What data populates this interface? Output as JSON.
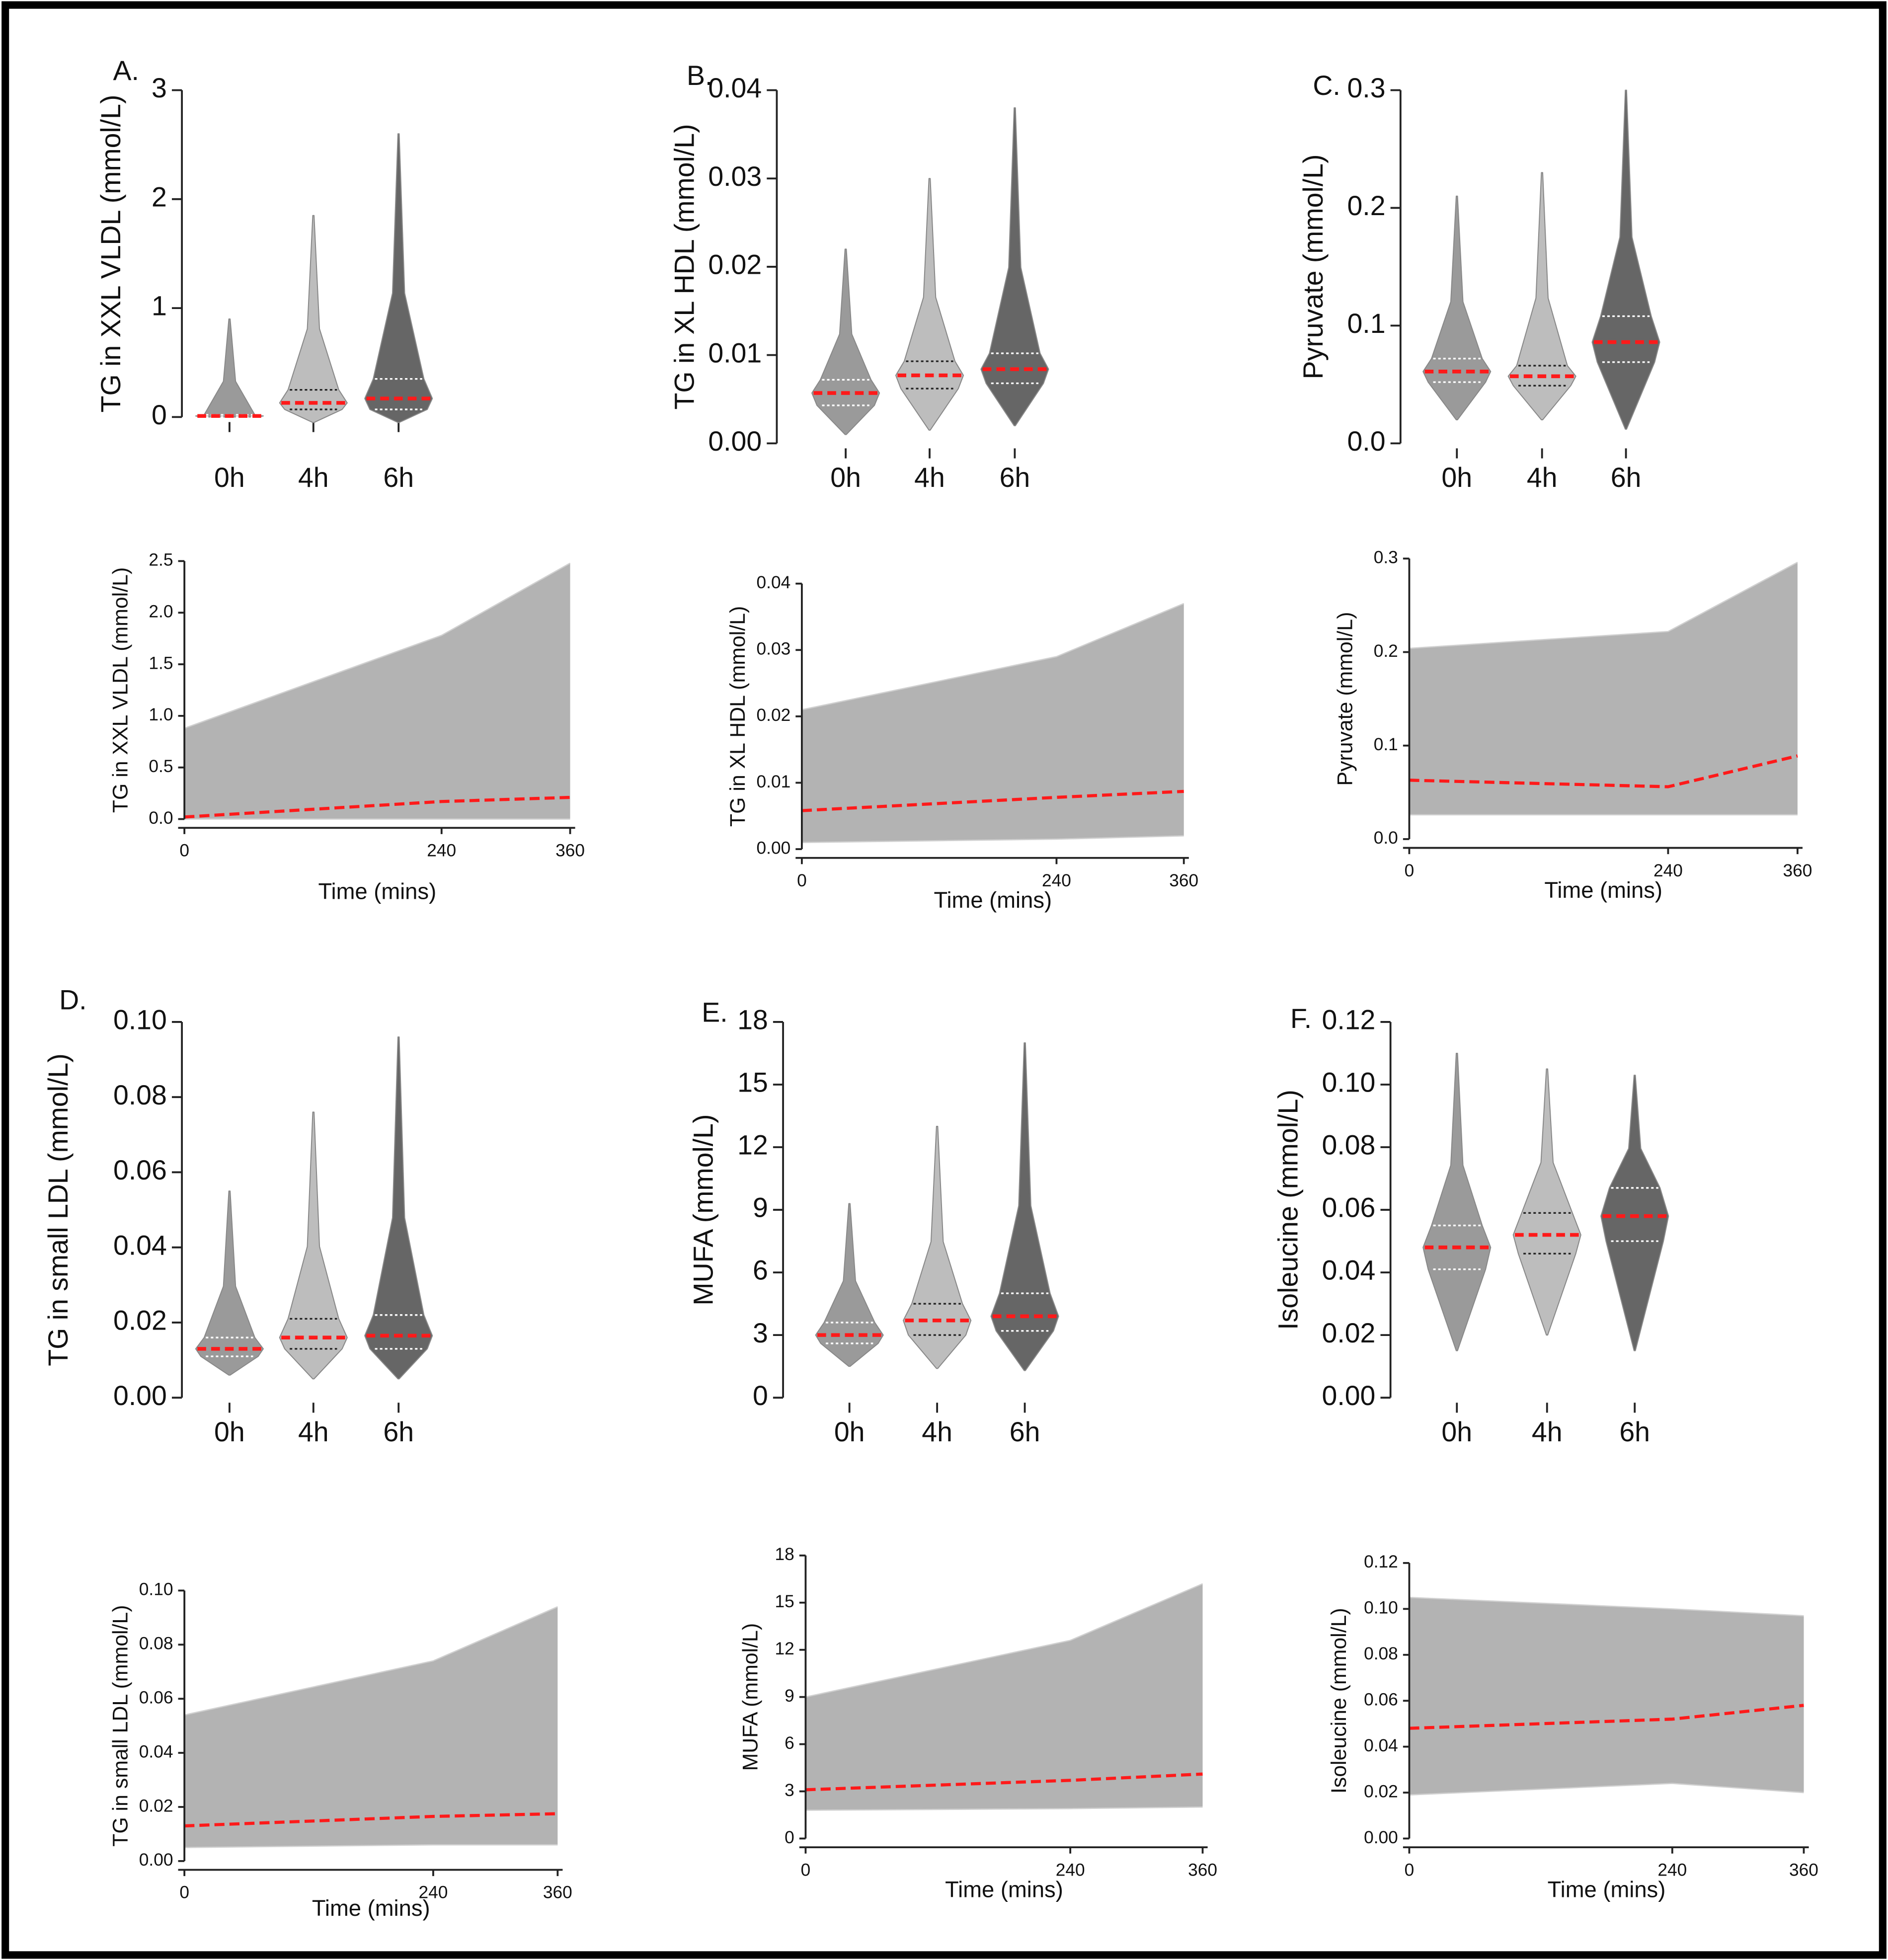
{
  "chart_data": [
    {
      "type": "violin",
      "label": "A.",
      "ylabel": "TG in XXL VLDL (mmol/L)",
      "categories": [
        "0h",
        "4h",
        "6h"
      ],
      "ylim": [
        0,
        3
      ],
      "yticks": [
        0,
        1,
        2,
        3
      ],
      "violins": [
        {
          "color": "#9a9a9a",
          "min": 0,
          "q1": 0,
          "median": 0.01,
          "q3": 0.02,
          "max": 0.9
        },
        {
          "color": "#bdbdbd",
          "min": -0.05,
          "q1": 0.07,
          "median": 0.13,
          "q3": 0.25,
          "max": 1.85
        },
        {
          "color": "#666666",
          "min": -0.05,
          "q1": 0.07,
          "median": 0.17,
          "q3": 0.35,
          "max": 2.6
        }
      ]
    },
    {
      "type": "violin",
      "label": "B.",
      "ylabel": "TG in XL HDL (mmol/L)",
      "categories": [
        "0h",
        "4h",
        "6h"
      ],
      "ylim": [
        0,
        0.04
      ],
      "yticks": [
        {
          "value": 0,
          "label": "0.00"
        },
        {
          "value": 0.01,
          "label": "0.01"
        },
        {
          "value": 0.02,
          "label": "0.02"
        },
        {
          "value": 0.03,
          "label": "0.03"
        },
        {
          "value": 0.04,
          "label": "0.04"
        }
      ],
      "violins": [
        {
          "color": "#9a9a9a",
          "min": 0.001,
          "q1": 0.0043,
          "median": 0.0057,
          "q3": 0.0072,
          "max": 0.022
        },
        {
          "color": "#bdbdbd",
          "min": 0.0015,
          "q1": 0.0062,
          "median": 0.0077,
          "q3": 0.0093,
          "max": 0.03
        },
        {
          "color": "#666666",
          "min": 0.002,
          "q1": 0.0068,
          "median": 0.0084,
          "q3": 0.0102,
          "max": 0.038
        }
      ]
    },
    {
      "type": "violin",
      "label": "C.",
      "ylabel": "Pyruvate (mmol/L)",
      "categories": [
        "0h",
        "4h",
        "6h"
      ],
      "ylim": [
        0,
        0.3
      ],
      "yticks": [
        {
          "value": 0,
          "label": "0.0"
        },
        0.1,
        0.2,
        0.3
      ],
      "violins": [
        {
          "color": "#9a9a9a",
          "min": 0.02,
          "q1": 0.052,
          "median": 0.061,
          "q3": 0.072,
          "max": 0.21
        },
        {
          "color": "#bdbdbd",
          "min": 0.02,
          "q1": 0.049,
          "median": 0.057,
          "q3": 0.066,
          "max": 0.23
        },
        {
          "color": "#666666",
          "min": 0.012,
          "q1": 0.069,
          "median": 0.086,
          "q3": 0.108,
          "max": 0.3
        }
      ]
    },
    {
      "type": "line",
      "ylabel": "TG in XXL VLDL (mmol/L)",
      "xlabel": "Time (mins)",
      "x": [
        0,
        240,
        360
      ],
      "xlim": [
        0,
        360
      ],
      "xticks": [
        0,
        240,
        360
      ],
      "ylim": [
        0,
        2.5
      ],
      "yticks": [
        {
          "value": 0,
          "label": "0.0"
        },
        0.5,
        {
          "value": 1,
          "label": "1.0"
        },
        1.5,
        {
          "value": 2,
          "label": "2.0"
        },
        2.5
      ],
      "series": [
        {
          "color": "#d0d0d0",
          "values": [
            0.88,
            1.78,
            2.48
          ]
        },
        {
          "color": "#d0d0d0",
          "values": [
            0,
            0,
            0
          ]
        },
        {
          "color": "#ff1a1a",
          "values": [
            0.02,
            0.17,
            0.21
          ]
        }
      ]
    },
    {
      "type": "line",
      "ylabel": "TG in XL HDL (mmol/L)",
      "xlabel": "Time (mins)",
      "x": [
        0,
        240,
        360
      ],
      "xlim": [
        0,
        360
      ],
      "xticks": [
        0,
        240,
        360
      ],
      "ylim": [
        0,
        0.04
      ],
      "yticks": [
        {
          "value": 0,
          "label": "0.00"
        },
        {
          "value": 0.01,
          "label": "0.01"
        },
        {
          "value": 0.02,
          "label": "0.02"
        },
        {
          "value": 0.03,
          "label": "0.03"
        },
        {
          "value": 0.04,
          "label": "0.04"
        }
      ],
      "series": [
        {
          "color": "#d0d0d0",
          "values": [
            0.021,
            0.029,
            0.037
          ]
        },
        {
          "color": "#d0d0d0",
          "values": [
            0.001,
            0.0015,
            0.002
          ]
        },
        {
          "color": "#ff1a1a",
          "values": [
            0.0058,
            0.0078,
            0.0087
          ]
        }
      ]
    },
    {
      "type": "line",
      "ylabel": "Pyruvate (mmol/L)",
      "xlabel": "Time (mins)",
      "x": [
        0,
        240,
        360
      ],
      "xlim": [
        0,
        360
      ],
      "xticks": [
        0,
        240,
        360
      ],
      "ylim": [
        0,
        0.3
      ],
      "yticks": [
        {
          "value": 0,
          "label": "0.0"
        },
        0.1,
        0.2,
        0.3
      ],
      "series": [
        {
          "color": "#d0d0d0",
          "values": [
            0.204,
            0.222,
            0.296
          ]
        },
        {
          "color": "#d0d0d0",
          "values": [
            0.026,
            0.026,
            0.026
          ]
        },
        {
          "color": "#ff1a1a",
          "values": [
            0.063,
            0.056,
            0.089
          ]
        }
      ]
    },
    {
      "type": "violin",
      "label": "D.",
      "ylabel": "TG in small LDL (mmol/L)",
      "categories": [
        "0h",
        "4h",
        "6h"
      ],
      "ylim": [
        0,
        0.1
      ],
      "yticks": [
        {
          "value": 0,
          "label": "0.00"
        },
        {
          "value": 0.02,
          "label": "0.02"
        },
        {
          "value": 0.04,
          "label": "0.04"
        },
        {
          "value": 0.06,
          "label": "0.06"
        },
        {
          "value": 0.08,
          "label": "0.08"
        },
        {
          "value": 0.1,
          "label": "0.10"
        }
      ],
      "violins": [
        {
          "color": "#9a9a9a",
          "min": 0.006,
          "q1": 0.011,
          "median": 0.013,
          "q3": 0.016,
          "max": 0.055
        },
        {
          "color": "#bdbdbd",
          "min": 0.005,
          "q1": 0.013,
          "median": 0.016,
          "q3": 0.021,
          "max": 0.076
        },
        {
          "color": "#666666",
          "min": 0.005,
          "q1": 0.013,
          "median": 0.0165,
          "q3": 0.022,
          "max": 0.096
        }
      ]
    },
    {
      "type": "violin",
      "label": "E.",
      "ylabel": "MUFA (mmol/L)",
      "categories": [
        "0h",
        "4h",
        "6h"
      ],
      "ylim": [
        0,
        18
      ],
      "yticks": [
        0,
        3,
        6,
        9,
        12,
        15,
        18
      ],
      "violins": [
        {
          "color": "#9a9a9a",
          "min": 1.5,
          "q1": 2.6,
          "median": 3.0,
          "q3": 3.6,
          "max": 9.3
        },
        {
          "color": "#bdbdbd",
          "min": 1.4,
          "q1": 3.0,
          "median": 3.7,
          "q3": 4.5,
          "max": 13
        },
        {
          "color": "#666666",
          "min": 1.3,
          "q1": 3.2,
          "median": 3.9,
          "q3": 5.0,
          "max": 17
        }
      ]
    },
    {
      "type": "violin",
      "label": "F.",
      "ylabel": "Isoleucine (mmol/L)",
      "categories": [
        "0h",
        "4h",
        "6h"
      ],
      "ylim": [
        0,
        0.12
      ],
      "yticks": [
        {
          "value": 0,
          "label": "0.00"
        },
        {
          "value": 0.02,
          "label": "0.02"
        },
        {
          "value": 0.04,
          "label": "0.04"
        },
        {
          "value": 0.06,
          "label": "0.06"
        },
        {
          "value": 0.08,
          "label": "0.08"
        },
        {
          "value": 0.1,
          "label": "0.10"
        },
        {
          "value": 0.12,
          "label": "0.12"
        }
      ],
      "violins": [
        {
          "color": "#9a9a9a",
          "min": 0.015,
          "q1": 0.041,
          "median": 0.048,
          "q3": 0.055,
          "max": 0.11
        },
        {
          "color": "#bdbdbd",
          "min": 0.02,
          "q1": 0.046,
          "median": 0.052,
          "q3": 0.059,
          "max": 0.105
        },
        {
          "color": "#666666",
          "min": 0.015,
          "q1": 0.05,
          "median": 0.058,
          "q3": 0.067,
          "max": 0.103
        }
      ]
    },
    {
      "type": "line",
      "ylabel": "TG in small LDL (mmol/L)",
      "xlabel": "Time (mins)",
      "x": [
        0,
        240,
        360
      ],
      "xlim": [
        0,
        360
      ],
      "xticks": [
        0,
        240,
        360
      ],
      "ylim": [
        0,
        0.1
      ],
      "yticks": [
        {
          "value": 0,
          "label": "0.00"
        },
        {
          "value": 0.02,
          "label": "0.02"
        },
        {
          "value": 0.04,
          "label": "0.04"
        },
        {
          "value": 0.06,
          "label": "0.06"
        },
        {
          "value": 0.08,
          "label": "0.08"
        },
        {
          "value": 0.1,
          "label": "0.10"
        }
      ],
      "series": [
        {
          "color": "#d0d0d0",
          "values": [
            0.054,
            0.074,
            0.094
          ]
        },
        {
          "color": "#d0d0d0",
          "values": [
            0.005,
            0.006,
            0.006
          ]
        },
        {
          "color": "#ff1a1a",
          "values": [
            0.013,
            0.0165,
            0.0175
          ]
        }
      ]
    },
    {
      "type": "line",
      "ylabel": "MUFA (mmol/L)",
      "xlabel": "Time (mins)",
      "x": [
        0,
        240,
        360
      ],
      "xlim": [
        0,
        360
      ],
      "xticks": [
        0,
        240,
        360
      ],
      "ylim": [
        0,
        18
      ],
      "yticks": [
        0,
        3,
        6,
        9,
        12,
        15,
        18
      ],
      "series": [
        {
          "color": "#d0d0d0",
          "values": [
            9.0,
            12.6,
            16.2
          ]
        },
        {
          "color": "#d0d0d0",
          "values": [
            1.8,
            1.9,
            2.0
          ]
        },
        {
          "color": "#ff1a1a",
          "values": [
            3.1,
            3.7,
            4.1
          ]
        }
      ]
    },
    {
      "type": "line",
      "ylabel": "Isoleucine (mmol/L)",
      "xlabel": "Time (mins)",
      "x": [
        0,
        240,
        360
      ],
      "xlim": [
        0,
        360
      ],
      "xticks": [
        0,
        240,
        360
      ],
      "ylim": [
        0,
        0.12
      ],
      "yticks": [
        {
          "value": 0,
          "label": "0.00"
        },
        {
          "value": 0.02,
          "label": "0.02"
        },
        {
          "value": 0.04,
          "label": "0.04"
        },
        {
          "value": 0.06,
          "label": "0.06"
        },
        {
          "value": 0.08,
          "label": "0.08"
        },
        {
          "value": 0.1,
          "label": "0.10"
        },
        {
          "value": 0.12,
          "label": "0.12"
        }
      ],
      "series": [
        {
          "color": "#d0d0d0",
          "values": [
            0.105,
            0.1,
            0.097
          ]
        },
        {
          "color": "#d0d0d0",
          "values": [
            0.019,
            0.024,
            0.02
          ]
        },
        {
          "color": "#ff1a1a",
          "values": [
            0.048,
            0.052,
            0.058
          ]
        }
      ]
    }
  ]
}
